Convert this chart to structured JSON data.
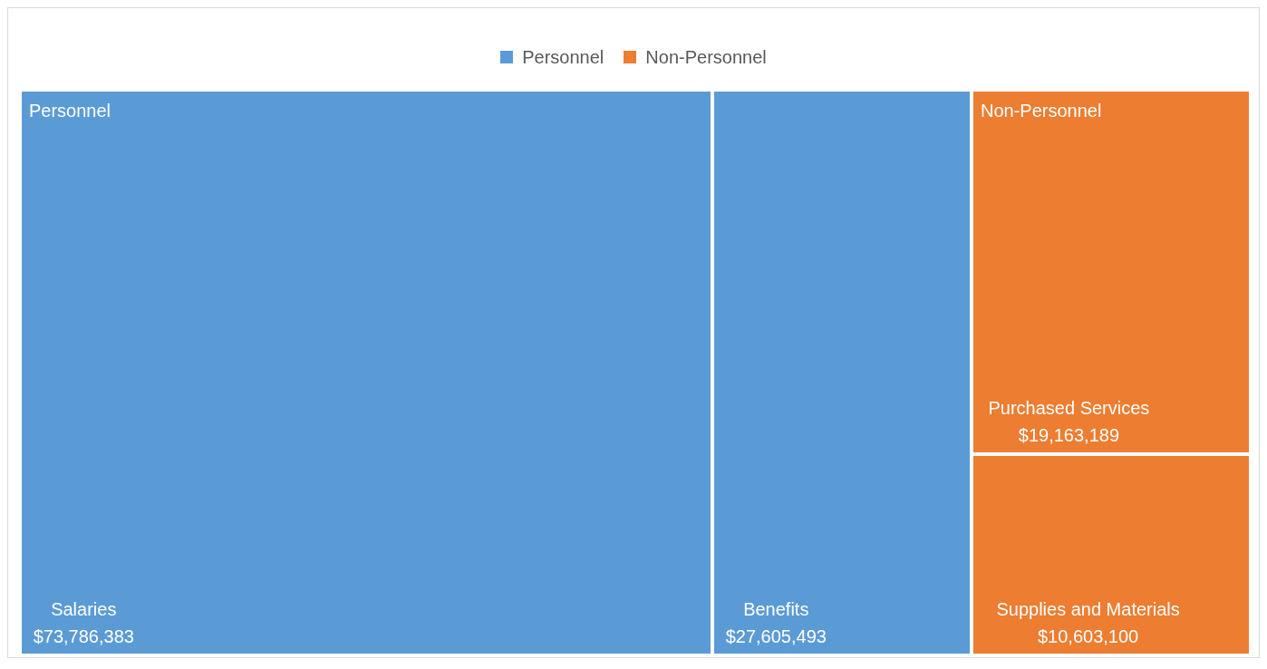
{
  "chart_data": {
    "type": "other",
    "legend": "top",
    "categories": [
      "Salaries",
      "Benefits",
      "Purchased Services",
      "Supplies and Materials"
    ],
    "series": [
      {
        "name": "Personnel",
        "color": "#5b9bd5",
        "values": [
          73786383,
          27605493,
          null,
          null
        ],
        "value_labels": [
          "$73,786,383",
          "$27,605,493",
          null,
          null
        ]
      },
      {
        "name": "Non-Personnel",
        "color": "#ed7d31",
        "values": [
          null,
          null,
          19163189,
          10603100
        ],
        "value_labels": [
          null,
          null,
          "$19,163,189",
          "$10,603,100"
        ]
      }
    ]
  }
}
